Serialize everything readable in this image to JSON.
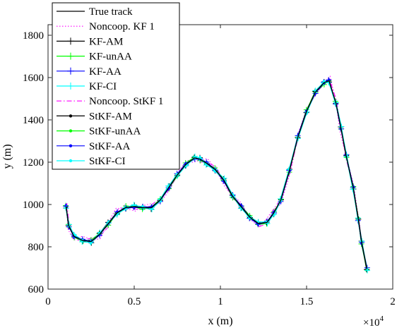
{
  "chart_data": {
    "type": "line",
    "title": "",
    "xlabel": "x (m)",
    "ylabel": "y (m)",
    "x_exponent_label": "×10",
    "x_exponent_power": "4",
    "xlim": [
      0,
      20000
    ],
    "ylim": [
      600,
      1850
    ],
    "x_ticks": [
      0,
      5000,
      10000,
      15000,
      20000
    ],
    "x_tick_labels": [
      "0",
      "0.5",
      "1",
      "1.5",
      "2"
    ],
    "y_ticks": [
      600,
      800,
      1000,
      1200,
      1400,
      1600,
      1800
    ],
    "y_tick_labels": [
      "600",
      "800",
      "1000",
      "1200",
      "1400",
      "1600",
      "1800"
    ],
    "grid": false,
    "legend_position": "top-left",
    "true_track": {
      "x": [
        1050,
        1200,
        1500,
        2000,
        2500,
        3000,
        3500,
        4000,
        4500,
        5000,
        5500,
        6000,
        6500,
        7000,
        7500,
        8000,
        8500,
        8800,
        9200,
        9700,
        10200,
        10700,
        11200,
        11700,
        12200,
        12700,
        13100,
        13500,
        14000,
        14500,
        15000,
        15500,
        16000,
        16300,
        16700,
        17000,
        17300,
        17700,
        18000,
        18200,
        18500
      ],
      "y": [
        990,
        900,
        850,
        830,
        825,
        860,
        910,
        960,
        985,
        990,
        985,
        985,
        1020,
        1080,
        1140,
        1190,
        1220,
        1215,
        1195,
        1165,
        1115,
        1040,
        990,
        940,
        910,
        915,
        960,
        1020,
        1160,
        1320,
        1440,
        1530,
        1575,
        1585,
        1480,
        1360,
        1230,
        1080,
        930,
        820,
        695
      ]
    },
    "series": [
      {
        "name": "True track",
        "color": "#000000",
        "style": "solid",
        "marker": "none"
      },
      {
        "name": "Noncoop. KF 1",
        "color": "#ff00ff",
        "style": "dotted",
        "marker": "none"
      },
      {
        "name": "KF-AM",
        "color": "#000000",
        "style": "solid",
        "marker": "plus"
      },
      {
        "name": "KF-unAA",
        "color": "#00ff00",
        "style": "solid",
        "marker": "plus"
      },
      {
        "name": "KF-AA",
        "color": "#0000ff",
        "style": "solid",
        "marker": "plus"
      },
      {
        "name": "KF-CI",
        "color": "#00ffff",
        "style": "solid",
        "marker": "plus"
      },
      {
        "name": "Noncoop. StKF 1",
        "color": "#ff00ff",
        "style": "dashdot",
        "marker": "none"
      },
      {
        "name": "StKF-AM",
        "color": "#000000",
        "style": "solid",
        "marker": "dot"
      },
      {
        "name": "StKF-unAA",
        "color": "#00ff00",
        "style": "solid",
        "marker": "dot"
      },
      {
        "name": "StKF-AA",
        "color": "#0000ff",
        "style": "solid",
        "marker": "dot"
      },
      {
        "name": "StKF-CI",
        "color": "#00ffff",
        "style": "solid",
        "marker": "dot"
      }
    ]
  }
}
